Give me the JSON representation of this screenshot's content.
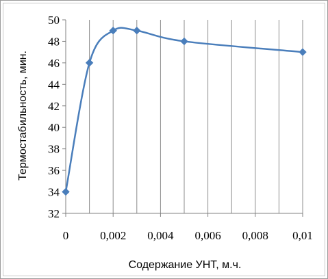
{
  "chart_data": {
    "type": "line",
    "title": "",
    "xlabel": "Содержание УНТ, м.ч.",
    "ylabel": "Термостабильность, мин.",
    "xlim": [
      0,
      0.01
    ],
    "ylim": [
      32,
      50
    ],
    "x_ticks": [
      0,
      0.002,
      0.004,
      0.006,
      0.008,
      0.01
    ],
    "x_tick_labels": [
      "0",
      "0,002",
      "0,004",
      "0,006",
      "0,008",
      "0,01"
    ],
    "y_ticks": [
      32,
      34,
      36,
      38,
      40,
      42,
      44,
      46,
      48,
      50
    ],
    "y_tick_labels": [
      "32",
      "34",
      "36",
      "38",
      "40",
      "42",
      "44",
      "46",
      "48",
      "50"
    ],
    "grid": "vertical",
    "legend": "none",
    "smoothed": true,
    "series": [
      {
        "x": [
          0,
          0.001,
          0.002,
          0.003,
          0.005,
          0.01
        ],
        "y": [
          34,
          46,
          49,
          49,
          48,
          47
        ],
        "color": "#4a7ebb",
        "marker": "diamond"
      }
    ]
  }
}
